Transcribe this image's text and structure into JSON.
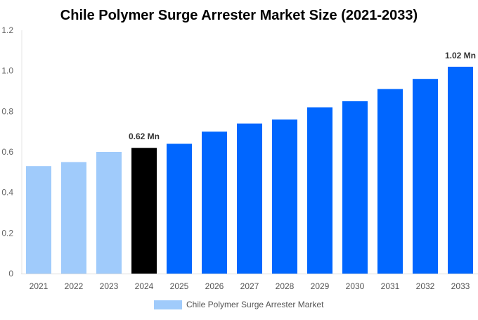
{
  "chart_data": {
    "type": "bar",
    "title": "Chile Polymer Surge Arrester Market Size (2021-2033)",
    "xlabel": "",
    "ylabel": "",
    "ylim": [
      0,
      1.2
    ],
    "yticks": [
      "0",
      "0.2",
      "0.4",
      "0.6",
      "0.8",
      "1.0",
      "1.2"
    ],
    "categories": [
      "2021",
      "2022",
      "2023",
      "2024",
      "2025",
      "2026",
      "2027",
      "2028",
      "2029",
      "2030",
      "2031",
      "2032",
      "2033"
    ],
    "series": [
      {
        "name": "Chile Polymer Surge Arrester Market",
        "values": [
          0.53,
          0.55,
          0.6,
          0.62,
          0.64,
          0.7,
          0.74,
          0.76,
          0.82,
          0.85,
          0.91,
          0.96,
          1.02
        ]
      }
    ],
    "bar_colors": [
      "#a0cbfb",
      "#a0cbfb",
      "#a0cbfb",
      "#000000",
      "#0066ff",
      "#0066ff",
      "#0066ff",
      "#0066ff",
      "#0066ff",
      "#0066ff",
      "#0066ff",
      "#0066ff",
      "#0066ff"
    ],
    "data_labels": [
      {
        "category": "2024",
        "text": "0.62 Mn"
      },
      {
        "category": "2033",
        "text": "1.02 Mn"
      }
    ],
    "legend": {
      "label": "Chile Polymer Surge Arrester Market",
      "color": "#a0cbfb",
      "position": "bottom"
    },
    "grid": false
  }
}
